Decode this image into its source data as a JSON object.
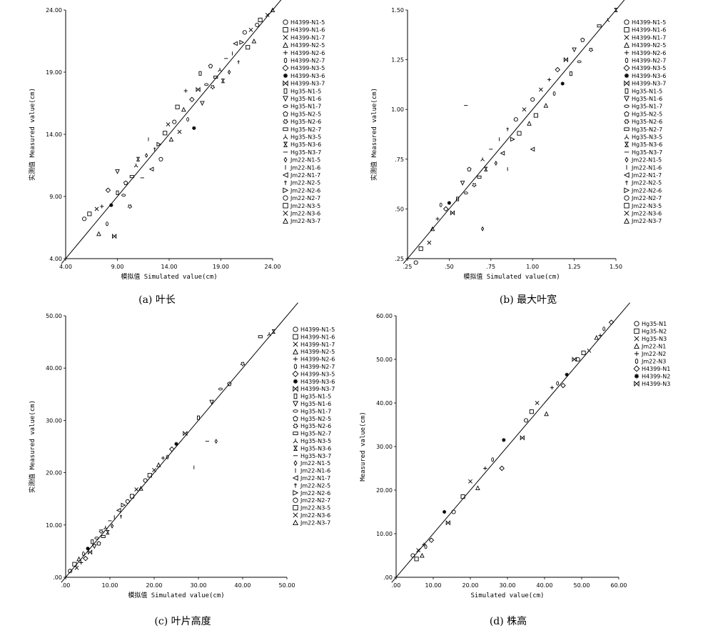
{
  "panels": [
    {
      "caption": "(a) 叶长",
      "xlabel": "模拟值 Simulated value(cm)",
      "ylabel": "实测值 Measured value(cm)",
      "legend": [
        "H4399-N1-5",
        "H4399-N1-6",
        "H4399-N1-7",
        "H4399-N2-5",
        "H4399-N2-6",
        "H4399-N2-7",
        "H4399-N3-5",
        "H4399-N3-6",
        "H4399-N3-7",
        "Hg35-N1-5",
        "Hg35-N1-6",
        "Hg35-N1-7",
        "Hg35-N2-5",
        "Hg35-N2-6",
        "Hg35-N2-7",
        "Hg35-N3-5",
        "Hg35-N3-6",
        "Hg35-N3-7",
        "Jm22-N1-5",
        "Jm22-N1-6",
        "Jm22-N1-7",
        "Jm22-N2-5",
        "Jm22-N2-6",
        "Jm22-N2-7",
        "Jm22-N3-5",
        "Jm22-N3-6",
        "Jm22-N3-7"
      ],
      "legend_symbols": [
        "circle",
        "square",
        "x",
        "triangle",
        "plus",
        "ellipse",
        "diamond",
        "star",
        "bowtie",
        "rect-tall",
        "triangle-down",
        "ellipse-wide",
        "pentagon",
        "gear",
        "rect-wide",
        "tripod",
        "hourglass",
        "dash",
        "diamond-small",
        "bar",
        "triangle-left",
        "dagger",
        "triangle-right",
        "circle",
        "square",
        "x",
        "triangle"
      ]
    },
    {
      "caption": "(b) 最大叶宽",
      "xlabel": "模拟值 Simulated value(cm)",
      "ylabel": "实测值 Measured value(cm)",
      "legend": [
        "H4399-N1-5",
        "H4399-N1-6",
        "H4399-N1-7",
        "H4399-N2-5",
        "H4399-N2-6",
        "H4399-N2-7",
        "H4399-N3-5",
        "H4399-N3-6",
        "H4399-N3-7",
        "Hg35-N1-5",
        "Hg35-N1-6",
        "Hg35-N1-7",
        "Hg35-N2-5",
        "Hg35-N2-6",
        "Hg35-N2-7",
        "Hg35-N3-5",
        "Hg35-N3-6",
        "Hg35-N3-7",
        "Jm22-N1-5",
        "Jm22-N1-6",
        "Jm22-N1-7",
        "Jm22-N2-5",
        "Jm22-N2-6",
        "Jm22-N2-7",
        "Jm22-N3-5",
        "Jm22-N3-6",
        "Jm22-N3-7"
      ],
      "legend_symbols": [
        "circle",
        "square",
        "x",
        "triangle",
        "plus",
        "ellipse",
        "diamond",
        "star",
        "bowtie",
        "rect-tall",
        "triangle-down",
        "ellipse-wide",
        "pentagon",
        "gear",
        "rect-wide",
        "tripod",
        "hourglass",
        "dash",
        "diamond-small",
        "bar",
        "triangle-left",
        "dagger",
        "triangle-right",
        "circle",
        "square",
        "x",
        "triangle"
      ]
    },
    {
      "caption": "(c) 叶片高度",
      "xlabel": "模拟值 Simulated value(cm)",
      "ylabel": "实测值 Measured value(cm)",
      "legend": [
        "H4399-N1-5",
        "H4399-N1-6",
        "H4399-N1-7",
        "H4399-N2-5",
        "H4399-N2-6",
        "H4399-N2-7",
        "H4399-N3-5",
        "H4399-N3-6",
        "H4399-N3-7",
        "Hg35-N1-5",
        "Hg35-N1-6",
        "Hg35-N1-7",
        "Hg35-N2-5",
        "Hg35-N2-6",
        "Hg35-N2-7",
        "Hg35-N3-5",
        "Hg35-N3-6",
        "Hg35-N3-7",
        "Jm22-N1-5",
        "Jm22-N1-6",
        "Jm22-N1-7",
        "Jm22-N2-5",
        "Jm22-N2-6",
        "Jm22-N2-7",
        "Jm22-N3-5",
        "Jm22-N3-6",
        "Jm22-N3-7"
      ],
      "legend_symbols": [
        "circle",
        "square",
        "x",
        "triangle",
        "plus",
        "ellipse",
        "diamond",
        "star",
        "bowtie",
        "rect-tall",
        "triangle-down",
        "ellipse-wide",
        "pentagon",
        "gear",
        "rect-wide",
        "tripod",
        "hourglass",
        "dash",
        "diamond-small",
        "bar",
        "triangle-left",
        "dagger",
        "triangle-right",
        "circle",
        "square",
        "x",
        "triangle"
      ]
    },
    {
      "caption": "(d) 株高",
      "xlabel": "Simulated value(cm)",
      "ylabel": "Measured value(cm)",
      "legend": [
        "Hg35-N1",
        "Hg35-N2",
        "Hg35-N3",
        "Jm22-N1",
        "Jm22-N2",
        "Jm22-N3",
        "H4399-N1",
        "H4399-N2",
        "H4399-N3"
      ],
      "legend_symbols": [
        "circle",
        "square",
        "x",
        "triangle",
        "plus",
        "ellipse",
        "diamond",
        "star",
        "bowtie"
      ]
    }
  ],
  "chart_data": [
    {
      "type": "scatter",
      "xlim": [
        4.0,
        24.0
      ],
      "ylim": [
        4.0,
        24.0
      ],
      "xticks": [
        "4.00",
        "9.00",
        "14.00",
        "19.00",
        "24.00"
      ],
      "yticks": [
        "4.00",
        "9.00",
        "14.00",
        "19.00",
        "24.00"
      ],
      "reference_line": "y = x",
      "points": [
        [
          5.8,
          7.2
        ],
        [
          6.3,
          7.6
        ],
        [
          7.0,
          8.0
        ],
        [
          7.2,
          6.0
        ],
        [
          7.5,
          8.2
        ],
        [
          8.0,
          6.8
        ],
        [
          8.1,
          9.5
        ],
        [
          8.4,
          8.3
        ],
        [
          8.7,
          5.8
        ],
        [
          9.0,
          9.3
        ],
        [
          9.0,
          11.0
        ],
        [
          9.6,
          9.1
        ],
        [
          9.8,
          10.1
        ],
        [
          10.2,
          8.2
        ],
        [
          10.4,
          10.6
        ],
        [
          10.8,
          11.5
        ],
        [
          11.0,
          12.0
        ],
        [
          11.4,
          10.5
        ],
        [
          11.8,
          12.3
        ],
        [
          12.0,
          13.6
        ],
        [
          12.3,
          11.2
        ],
        [
          12.6,
          12.8
        ],
        [
          13.0,
          13.2
        ],
        [
          13.2,
          12.0
        ],
        [
          13.6,
          14.1
        ],
        [
          13.9,
          14.8
        ],
        [
          14.2,
          13.6
        ],
        [
          14.5,
          15.0
        ],
        [
          14.8,
          16.2
        ],
        [
          15.0,
          14.2
        ],
        [
          15.4,
          16.0
        ],
        [
          15.6,
          17.5
        ],
        [
          15.8,
          15.2
        ],
        [
          16.2,
          16.8
        ],
        [
          16.4,
          14.5
        ],
        [
          16.8,
          17.6
        ],
        [
          17.0,
          18.9
        ],
        [
          17.2,
          16.5
        ],
        [
          17.6,
          18.0
        ],
        [
          18.0,
          19.5
        ],
        [
          18.2,
          17.8
        ],
        [
          18.5,
          18.6
        ],
        [
          18.9,
          19.2
        ],
        [
          19.2,
          18.3
        ],
        [
          19.5,
          20.1
        ],
        [
          19.8,
          19.0
        ],
        [
          20.1,
          20.5
        ],
        [
          20.4,
          21.3
        ],
        [
          20.7,
          19.8
        ],
        [
          21.0,
          21.4
        ],
        [
          21.3,
          22.2
        ],
        [
          21.6,
          21.0
        ],
        [
          21.9,
          22.4
        ],
        [
          22.2,
          21.5
        ],
        [
          22.5,
          22.8
        ],
        [
          22.8,
          23.2
        ],
        [
          23.5,
          23.6
        ],
        [
          24.0,
          24.0
        ]
      ]
    },
    {
      "type": "scatter",
      "xlim": [
        0.25,
        1.5
      ],
      "ylim": [
        0.25,
        1.5
      ],
      "xticks": [
        ".25",
        ".50",
        ".75",
        "1.00",
        "1.25",
        "1.50"
      ],
      "yticks": [
        ".25",
        ".50",
        ".75",
        "1.00",
        "1.25",
        "1.50"
      ],
      "reference_line": "y = x",
      "points": [
        [
          0.3,
          0.23
        ],
        [
          0.33,
          0.3
        ],
        [
          0.38,
          0.33
        ],
        [
          0.4,
          0.4
        ],
        [
          0.43,
          0.45
        ],
        [
          0.45,
          0.52
        ],
        [
          0.48,
          0.5
        ],
        [
          0.5,
          0.53
        ],
        [
          0.52,
          0.48
        ],
        [
          0.55,
          0.55
        ],
        [
          0.58,
          0.63
        ],
        [
          0.6,
          0.58
        ],
        [
          0.62,
          0.7
        ],
        [
          0.65,
          0.62
        ],
        [
          0.68,
          0.66
        ],
        [
          0.7,
          0.75
        ],
        [
          0.72,
          0.7
        ],
        [
          0.75,
          0.8
        ],
        [
          0.78,
          0.73
        ],
        [
          0.8,
          0.85
        ],
        [
          0.82,
          0.78
        ],
        [
          0.85,
          0.9
        ],
        [
          0.88,
          0.85
        ],
        [
          0.9,
          0.95
        ],
        [
          0.92,
          0.88
        ],
        [
          0.95,
          1.0
        ],
        [
          0.98,
          0.93
        ],
        [
          1.0,
          1.05
        ],
        [
          1.02,
          0.97
        ],
        [
          1.05,
          1.1
        ],
        [
          1.08,
          1.02
        ],
        [
          1.1,
          1.15
        ],
        [
          1.13,
          1.08
        ],
        [
          1.15,
          1.2
        ],
        [
          1.18,
          1.13
        ],
        [
          1.2,
          1.25
        ],
        [
          1.23,
          1.18
        ],
        [
          1.25,
          1.3
        ],
        [
          1.28,
          1.24
        ],
        [
          1.3,
          1.35
        ],
        [
          1.35,
          1.3
        ],
        [
          1.4,
          1.42
        ],
        [
          1.45,
          1.45
        ],
        [
          1.5,
          1.5
        ],
        [
          0.6,
          1.02
        ],
        [
          0.7,
          0.4
        ],
        [
          0.85,
          0.7
        ],
        [
          1.0,
          0.8
        ]
      ]
    },
    {
      "type": "scatter",
      "xlim": [
        0.0,
        50.0
      ],
      "ylim": [
        0.0,
        50.0
      ],
      "xticks": [
        ".00",
        "10.00",
        "20.00",
        "30.00",
        "40.00",
        "50.00"
      ],
      "yticks": [
        ".00",
        "10.00",
        "20.00",
        "30.00",
        "40.00",
        "50.00"
      ],
      "reference_line": "y = x",
      "points": [
        [
          1.0,
          1.2
        ],
        [
          2.0,
          2.5
        ],
        [
          2.5,
          1.8
        ],
        [
          3.0,
          3.5
        ],
        [
          3.5,
          2.8
        ],
        [
          4.0,
          4.5
        ],
        [
          4.5,
          3.6
        ],
        [
          5.0,
          5.5
        ],
        [
          5.5,
          4.8
        ],
        [
          6.0,
          6.8
        ],
        [
          6.5,
          5.9
        ],
        [
          7.0,
          7.5
        ],
        [
          7.5,
          6.5
        ],
        [
          8.0,
          8.8
        ],
        [
          8.5,
          7.8
        ],
        [
          9.0,
          9.5
        ],
        [
          9.5,
          8.6
        ],
        [
          10.0,
          10.8
        ],
        [
          10.5,
          9.8
        ],
        [
          11.0,
          11.5
        ],
        [
          12.0,
          12.8
        ],
        [
          12.5,
          11.6
        ],
        [
          13.0,
          13.8
        ],
        [
          14.0,
          14.5
        ],
        [
          15.0,
          15.5
        ],
        [
          16.0,
          16.8
        ],
        [
          17.0,
          17.0
        ],
        [
          18.0,
          18.5
        ],
        [
          19.0,
          19.5
        ],
        [
          20.0,
          20.5
        ],
        [
          21.0,
          21.5
        ],
        [
          22.0,
          22.8
        ],
        [
          23.0,
          23.0
        ],
        [
          24.0,
          24.5
        ],
        [
          25.0,
          25.5
        ],
        [
          27.0,
          27.5
        ],
        [
          30.0,
          30.5
        ],
        [
          33.0,
          33.5
        ],
        [
          35.0,
          36.0
        ],
        [
          37.0,
          37.0
        ],
        [
          40.0,
          40.8
        ],
        [
          44.0,
          46.0
        ],
        [
          46.0,
          46.5
        ],
        [
          47.0,
          47.0
        ],
        [
          32.0,
          26.0
        ],
        [
          34.0,
          26.0
        ],
        [
          29.0,
          21.0
        ]
      ]
    },
    {
      "type": "scatter",
      "xlim": [
        0.0,
        60.0
      ],
      "ylim": [
        0.0,
        60.0
      ],
      "xticks": [
        ".00",
        "10.00",
        "20.00",
        "30.00",
        "40.00",
        "50.00",
        "60.00"
      ],
      "yticks": [
        ".00",
        "10.00",
        "20.00",
        "30.00",
        "40.00",
        "50.00",
        "60.00"
      ],
      "reference_line": "y = x",
      "points": [
        [
          4.5,
          5.0
        ],
        [
          5.5,
          4.2
        ],
        [
          6.0,
          6.2
        ],
        [
          7.0,
          5.0
        ],
        [
          7.5,
          7.5
        ],
        [
          8.0,
          7.0
        ],
        [
          9.5,
          8.5
        ],
        [
          13.0,
          15.0
        ],
        [
          14.0,
          12.5
        ],
        [
          15.5,
          15.0
        ],
        [
          18.0,
          18.5
        ],
        [
          20.0,
          22.0
        ],
        [
          22.0,
          20.5
        ],
        [
          24.0,
          25.0
        ],
        [
          26.0,
          27.0
        ],
        [
          28.5,
          25.0
        ],
        [
          29.0,
          31.5
        ],
        [
          34.0,
          32.0
        ],
        [
          35.0,
          36.0
        ],
        [
          36.5,
          38.0
        ],
        [
          38.0,
          40.0
        ],
        [
          40.5,
          37.5
        ],
        [
          42.0,
          43.5
        ],
        [
          43.5,
          44.5
        ],
        [
          45.0,
          44.0
        ],
        [
          46.0,
          46.5
        ],
        [
          48.0,
          50.0
        ],
        [
          49.0,
          50.0
        ],
        [
          50.5,
          51.5
        ],
        [
          52.0,
          52.0
        ],
        [
          54.0,
          55.0
        ],
        [
          55.0,
          55.5
        ],
        [
          56.0,
          57.0
        ],
        [
          58.0,
          58.5
        ]
      ]
    }
  ]
}
